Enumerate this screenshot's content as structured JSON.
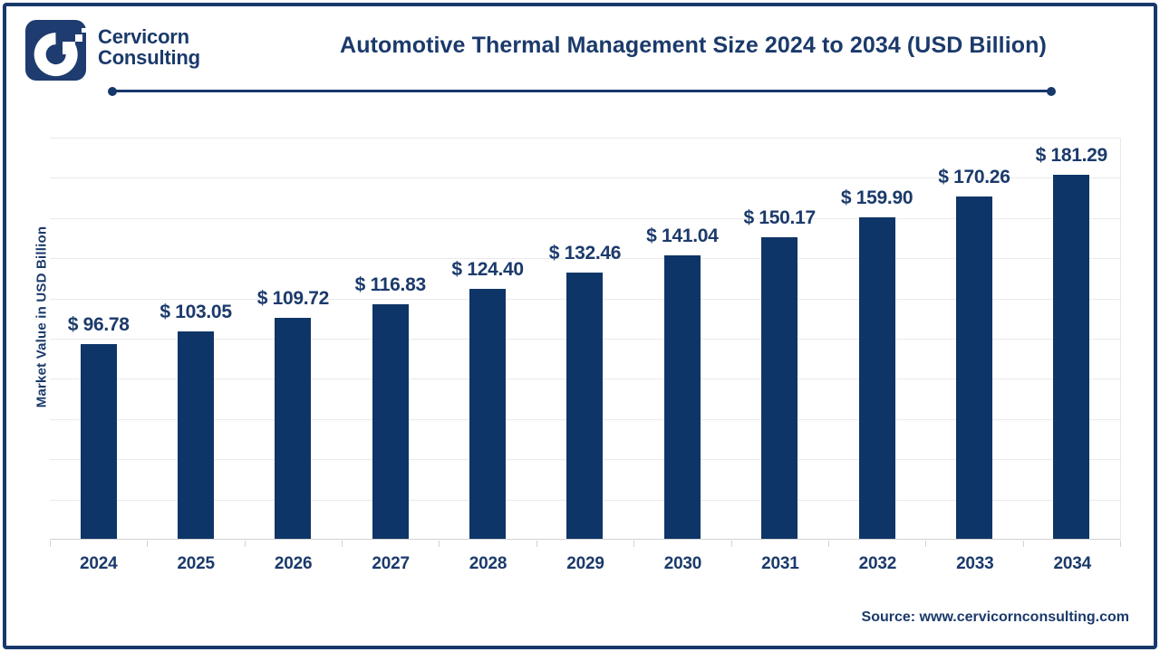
{
  "header": {
    "brand_line1": "Cervicorn",
    "brand_line2": "Consulting",
    "logo_icon": "cervicorn-c-logo",
    "title": "Automotive Thermal Management Size 2024 to 2034 (USD Billion)"
  },
  "chart_data": {
    "type": "bar",
    "title": "Automotive Thermal Management Size 2024 to 2034 (USD Billion)",
    "categories": [
      "2024",
      "2025",
      "2026",
      "2027",
      "2028",
      "2029",
      "2030",
      "2031",
      "2032",
      "2033",
      "2034"
    ],
    "values": [
      96.78,
      103.05,
      109.72,
      116.83,
      124.4,
      132.46,
      141.04,
      150.17,
      159.9,
      170.26,
      181.29
    ],
    "value_prefix": "$ ",
    "xlabel": "",
    "ylabel": "Market Value in USD Billion",
    "ylim": [
      0,
      200
    ],
    "grid_step": 20,
    "grid": true,
    "legend_position": "none",
    "bar_color": "#0E3567"
  },
  "footer": {
    "source": "Source: www.cervicornconsulting.com"
  },
  "colors": {
    "navy_text": "#1B3A6B",
    "bar": "#0E3567",
    "border": "#17386B",
    "gridline": "#EAEAEA",
    "axis_line": "#D2D2D2",
    "logo_background": "#1E3C70",
    "background": "#FFFFFF"
  }
}
